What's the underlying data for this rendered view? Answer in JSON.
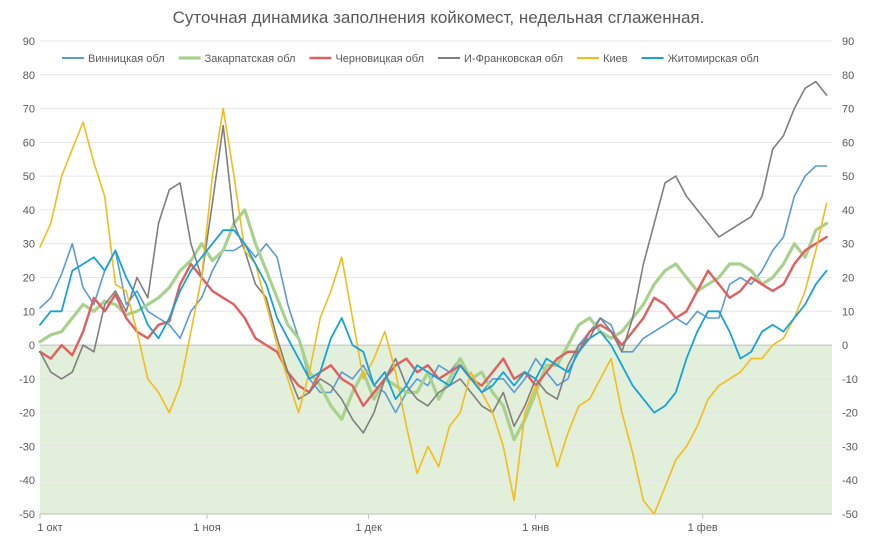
{
  "chart_data": {
    "type": "line",
    "title": "Суточная динамика заполнения койкомест, недельная сглаженная.",
    "xlabel": "",
    "ylabel": "",
    "ylim": [
      -50,
      90
    ],
    "yticks": [
      -50,
      -40,
      -30,
      -20,
      -10,
      0,
      10,
      20,
      30,
      40,
      50,
      60,
      70,
      80,
      90
    ],
    "secondary_axis": true,
    "x_tick_labels": [
      "1 окт",
      "1 ноя",
      "1 дек",
      "1 янв",
      "1 фев"
    ],
    "x_tick_days": [
      0,
      31,
      61,
      92,
      123
    ],
    "x_day_range": [
      0,
      147
    ],
    "grid": true,
    "legend_position": "top",
    "negative_area_fill": "#e2efda",
    "series": [
      {
        "name": "Винницкая обл",
        "color": "#5b9bd5",
        "width": 1.6,
        "x": [
          0,
          2,
          4,
          6,
          8,
          10,
          12,
          14,
          16,
          18,
          20,
          22,
          24,
          26,
          28,
          30,
          32,
          34,
          36,
          38,
          40,
          42,
          44,
          46,
          48,
          50,
          52,
          54,
          56,
          58,
          60,
          62,
          64,
          66,
          68,
          70,
          72,
          74,
          76,
          78,
          80,
          82,
          84,
          86,
          88,
          90,
          92,
          94,
          96,
          98,
          100,
          102,
          104,
          106,
          108,
          110,
          112,
          114,
          116,
          118,
          120,
          122,
          124,
          126,
          128,
          130,
          132,
          134,
          136,
          138,
          140,
          142,
          144,
          146
        ],
        "y": [
          11,
          14,
          21,
          30,
          17,
          12,
          22,
          28,
          12,
          16,
          10,
          8,
          6,
          2,
          10,
          14,
          22,
          28,
          28,
          30,
          26,
          30,
          26,
          12,
          2,
          -10,
          -14,
          -14,
          -8,
          -10,
          -6,
          -12,
          -14,
          -20,
          -14,
          -10,
          -12,
          -6,
          -8,
          -4,
          -10,
          -14,
          -10,
          -10,
          -14,
          -10,
          -4,
          -8,
          -12,
          -10,
          0,
          4,
          8,
          6,
          -2,
          -2,
          2,
          4,
          6,
          8,
          6,
          10,
          8,
          8,
          18,
          20,
          18,
          22,
          28,
          32,
          44,
          50,
          53,
          53
        ]
      },
      {
        "name": "Закарпатская обл",
        "color": "#a9d18e",
        "width": 3.2,
        "x": [
          0,
          2,
          4,
          6,
          8,
          10,
          12,
          14,
          16,
          18,
          20,
          22,
          24,
          26,
          28,
          30,
          32,
          34,
          36,
          38,
          40,
          42,
          44,
          46,
          48,
          50,
          52,
          54,
          56,
          58,
          60,
          62,
          64,
          66,
          68,
          70,
          72,
          74,
          76,
          78,
          80,
          82,
          84,
          86,
          88,
          90,
          92,
          94,
          96,
          98,
          100,
          102,
          104,
          106,
          108,
          110,
          112,
          114,
          116,
          118,
          120,
          122,
          124,
          126,
          128,
          130,
          132,
          134,
          136,
          138,
          140,
          142,
          144,
          146
        ],
        "y": [
          1,
          3,
          4,
          8,
          12,
          10,
          13,
          12,
          9,
          10,
          12,
          14,
          17,
          22,
          25,
          30,
          25,
          28,
          36,
          40,
          30,
          22,
          14,
          6,
          2,
          -8,
          -12,
          -18,
          -22,
          -14,
          -8,
          -16,
          -10,
          -12,
          -14,
          -14,
          -8,
          -16,
          -10,
          -4,
          -10,
          -8,
          -14,
          -18,
          -28,
          -22,
          -14,
          -6,
          -6,
          0,
          6,
          8,
          4,
          2,
          4,
          8,
          12,
          18,
          22,
          24,
          20,
          16,
          18,
          20,
          24,
          24,
          22,
          18,
          20,
          24,
          30,
          26,
          34,
          36
        ]
      },
      {
        "name": "Черновицкая обл",
        "color": "#e06060",
        "width": 2.4,
        "x": [
          0,
          2,
          4,
          6,
          8,
          10,
          12,
          14,
          16,
          18,
          20,
          22,
          24,
          26,
          28,
          30,
          32,
          34,
          36,
          38,
          40,
          42,
          44,
          46,
          48,
          50,
          52,
          54,
          56,
          58,
          60,
          62,
          64,
          66,
          68,
          70,
          72,
          74,
          76,
          78,
          80,
          82,
          84,
          86,
          88,
          90,
          92,
          94,
          96,
          98,
          100,
          102,
          104,
          106,
          108,
          110,
          112,
          114,
          116,
          118,
          120,
          122,
          124,
          126,
          128,
          130,
          132,
          134,
          136,
          138,
          140,
          142,
          144,
          146
        ],
        "y": [
          -2,
          -4,
          0,
          -3,
          4,
          14,
          10,
          15,
          8,
          4,
          2,
          6,
          7,
          18,
          24,
          20,
          16,
          14,
          12,
          8,
          2,
          0,
          -2,
          -8,
          -12,
          -14,
          -8,
          -6,
          -10,
          -12,
          -18,
          -14,
          -10,
          -6,
          -4,
          -8,
          -6,
          -10,
          -8,
          -6,
          -10,
          -12,
          -8,
          -4,
          -10,
          -8,
          -12,
          -8,
          -4,
          -2,
          -2,
          4,
          6,
          4,
          0,
          4,
          8,
          14,
          12,
          8,
          10,
          16,
          22,
          18,
          14,
          16,
          20,
          18,
          16,
          18,
          24,
          28,
          30,
          32
        ]
      },
      {
        "name": "И-Франковская обл",
        "color": "#7f7f7f",
        "width": 1.6,
        "x": [
          0,
          2,
          4,
          6,
          8,
          10,
          12,
          14,
          16,
          18,
          20,
          22,
          24,
          26,
          28,
          30,
          32,
          34,
          36,
          38,
          40,
          42,
          44,
          46,
          48,
          50,
          52,
          54,
          56,
          58,
          60,
          62,
          64,
          66,
          68,
          70,
          72,
          74,
          76,
          78,
          80,
          82,
          84,
          86,
          88,
          90,
          92,
          94,
          96,
          98,
          100,
          102,
          104,
          106,
          108,
          110,
          112,
          114,
          116,
          118,
          120,
          122,
          124,
          126,
          128,
          130,
          132,
          134,
          136,
          138,
          140,
          142,
          144,
          146
        ],
        "y": [
          -2,
          -8,
          -10,
          -8,
          0,
          -2,
          12,
          16,
          10,
          20,
          14,
          36,
          46,
          48,
          30,
          20,
          42,
          65,
          36,
          28,
          18,
          14,
          2,
          -8,
          -16,
          -14,
          -10,
          -12,
          -16,
          -22,
          -26,
          -20,
          -10,
          -4,
          -12,
          -16,
          -18,
          -14,
          -12,
          -10,
          -14,
          -18,
          -20,
          -14,
          -24,
          -18,
          -10,
          -14,
          -16,
          -6,
          0,
          2,
          8,
          4,
          -2,
          8,
          24,
          36,
          48,
          50,
          44,
          40,
          36,
          32,
          34,
          36,
          38,
          44,
          58,
          62,
          70,
          76,
          78,
          74
        ]
      },
      {
        "name": "Киев",
        "color": "#f2bc1d",
        "width": 1.6,
        "x": [
          0,
          2,
          4,
          6,
          8,
          10,
          12,
          14,
          16,
          18,
          20,
          22,
          24,
          26,
          28,
          30,
          32,
          34,
          36,
          38,
          40,
          42,
          44,
          46,
          48,
          50,
          52,
          54,
          56,
          58,
          60,
          62,
          64,
          66,
          68,
          70,
          72,
          74,
          76,
          78,
          80,
          82,
          84,
          86,
          88,
          90,
          92,
          94,
          96,
          98,
          100,
          102,
          104,
          106,
          108,
          110,
          112,
          114,
          116,
          118,
          120,
          122,
          124,
          126,
          128,
          130,
          132,
          134,
          136,
          138,
          140,
          142,
          144,
          146
        ],
        "y": [
          29,
          36,
          50,
          58,
          66,
          54,
          44,
          18,
          16,
          4,
          -10,
          -14,
          -20,
          -12,
          4,
          20,
          50,
          70,
          50,
          28,
          24,
          12,
          0,
          -10,
          -20,
          -8,
          8,
          16,
          26,
          8,
          -10,
          -4,
          4,
          -8,
          -24,
          -38,
          -30,
          -36,
          -24,
          -20,
          -8,
          -14,
          -20,
          -30,
          -46,
          -20,
          -12,
          -24,
          -36,
          -26,
          -18,
          -16,
          -10,
          -4,
          -20,
          -32,
          -46,
          -50,
          -42,
          -34,
          -30,
          -24,
          -16,
          -12,
          -10,
          -8,
          -4,
          -4,
          0,
          2,
          8,
          16,
          28,
          42
        ]
      },
      {
        "name": "Житомирская обл",
        "color": "#17a2d8",
        "width": 1.8,
        "x": [
          0,
          2,
          4,
          6,
          8,
          10,
          12,
          14,
          16,
          18,
          20,
          22,
          24,
          26,
          28,
          30,
          32,
          34,
          36,
          38,
          40,
          42,
          44,
          46,
          48,
          50,
          52,
          54,
          56,
          58,
          60,
          62,
          64,
          66,
          68,
          70,
          72,
          74,
          76,
          78,
          80,
          82,
          84,
          86,
          88,
          90,
          92,
          94,
          96,
          98,
          100,
          102,
          104,
          106,
          108,
          110,
          112,
          114,
          116,
          118,
          120,
          122,
          124,
          126,
          128,
          130,
          132,
          134,
          136,
          138,
          140,
          142,
          144,
          146
        ],
        "y": [
          6,
          10,
          10,
          22,
          24,
          26,
          22,
          28,
          20,
          14,
          6,
          2,
          8,
          16,
          22,
          26,
          30,
          34,
          34,
          30,
          24,
          18,
          8,
          2,
          -4,
          -10,
          -8,
          2,
          8,
          0,
          -2,
          -12,
          -8,
          -16,
          -12,
          -6,
          -8,
          -10,
          -12,
          -6,
          -10,
          -14,
          -12,
          -8,
          -12,
          -8,
          -10,
          -4,
          -6,
          -8,
          -2,
          2,
          4,
          0,
          -6,
          -12,
          -16,
          -20,
          -18,
          -14,
          -4,
          4,
          10,
          10,
          4,
          -4,
          -2,
          4,
          6,
          4,
          8,
          12,
          18,
          22
        ]
      }
    ]
  }
}
